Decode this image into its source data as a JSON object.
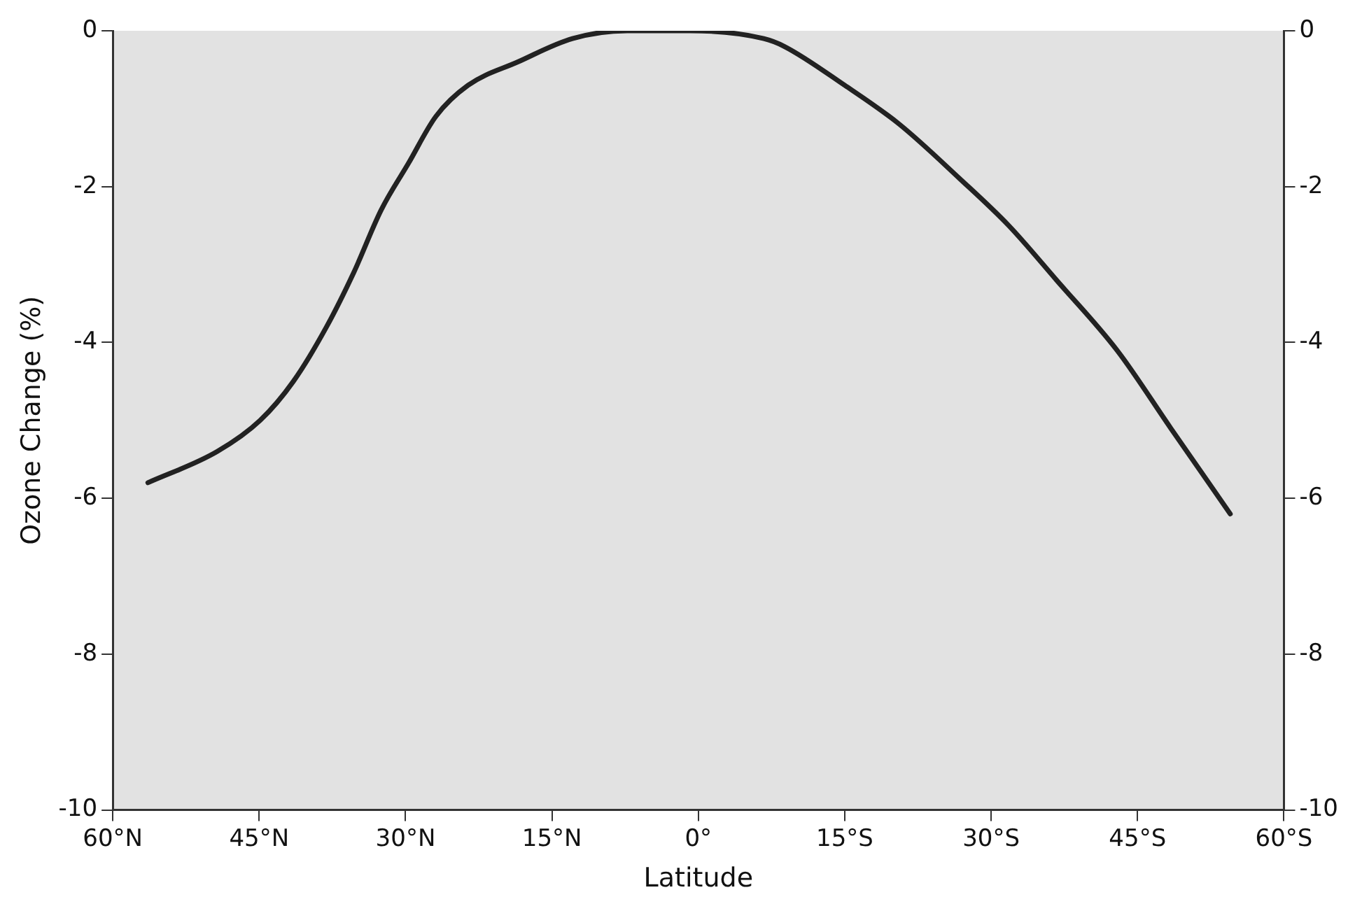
{
  "chart_data": {
    "type": "line",
    "xlabel": "Latitude",
    "ylabel": "Ozone Change (%)",
    "x": [
      -56.4,
      -49.3,
      -44.9,
      -41.5,
      -38.1,
      -35.3,
      -32.5,
      -29.7,
      -26.9,
      -23.6,
      -18.5,
      -12.9,
      -7.3,
      -0.8,
      6.7,
      8.8,
      15,
      20.6,
      26.8,
      31.8,
      36.7,
      42.9,
      48.4,
      54.5
    ],
    "series": [
      {
        "color": "#222222",
        "values": [
          -5.8,
          -5.4,
          -5.0,
          -4.5,
          -3.8,
          -3.1,
          -2.3,
          -1.7,
          -1.1,
          -0.7,
          -0.4,
          -0.1,
          0.0,
          0.0,
          -0.1,
          -0.2,
          -0.7,
          -1.2,
          -1.9,
          -2.5,
          -3.2,
          -4.1,
          -5.1,
          -6.2
        ]
      }
    ],
    "xlim": [
      -60,
      60
    ],
    "xticks": [
      {
        "value": -60,
        "label": "60°N"
      },
      {
        "value": -45,
        "label": "45°N"
      },
      {
        "value": -30,
        "label": "30°N"
      },
      {
        "value": -15,
        "label": "15°N"
      },
      {
        "value": 0,
        "label": "0°"
      },
      {
        "value": 15,
        "label": "15°S"
      },
      {
        "value": 30,
        "label": "30°S"
      },
      {
        "value": 45,
        "label": "45°S"
      },
      {
        "value": 60,
        "label": "60°S"
      }
    ],
    "ylim": [
      -10,
      0
    ],
    "yticks": [
      -10,
      -8,
      -6,
      -4,
      -2,
      0
    ],
    "y2lim": [
      -10,
      0
    ],
    "y2ticks": [
      -10,
      -8,
      -6,
      -4,
      -2,
      0
    ],
    "grid": false,
    "legend": false,
    "marker": "none",
    "line_style": "solid"
  }
}
